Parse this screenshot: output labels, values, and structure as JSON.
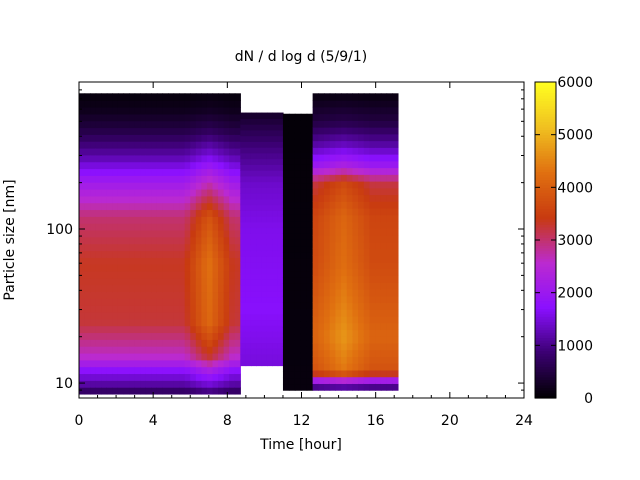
{
  "chart_data": {
    "type": "heatmap",
    "title": "dN / d log d (5/9/1)",
    "xlabel": "Time [hour]",
    "ylabel": "Particle size [nm]",
    "xlim": [
      0,
      24
    ],
    "ylim": [
      8,
      900
    ],
    "yscale": "log",
    "x_ticks": [
      0,
      4,
      8,
      12,
      16,
      20,
      24
    ],
    "y_ticks": [
      10,
      100
    ],
    "colorbar": {
      "min": 0,
      "max": 6000,
      "ticks": [
        0,
        1000,
        2000,
        3000,
        4000,
        5000,
        6000
      ],
      "palette": [
        "#000000",
        "#3a0070",
        "#8a10ff",
        "#bb2ad0",
        "#c83a10",
        "#e07010",
        "#f0c020",
        "#ffff20"
      ]
    },
    "segments": [
      {
        "x_start": 0,
        "x_end": 8.7,
        "d_min": 8.5,
        "d_max": 760,
        "profile": [
          [
            8.5,
            600
          ],
          [
            10,
            1200
          ],
          [
            12,
            1700
          ],
          [
            15,
            2600
          ],
          [
            25,
            3250
          ],
          [
            60,
            3350
          ],
          [
            120,
            3000
          ],
          [
            200,
            2100
          ],
          [
            300,
            1200
          ],
          [
            450,
            500
          ],
          [
            600,
            200
          ],
          [
            760,
            80
          ]
        ],
        "peak_hours": [
          6.5,
          7.5
        ],
        "peak_value": 4300
      },
      {
        "x_start": 8.7,
        "x_end": 11.0,
        "d_min": 13,
        "d_max": 570,
        "profile": [
          [
            13,
            1500
          ],
          [
            30,
            1700
          ],
          [
            100,
            1600
          ],
          [
            200,
            1400
          ],
          [
            350,
            900
          ],
          [
            570,
            300
          ]
        ]
      },
      {
        "x_start": 11.0,
        "x_end": 12.6,
        "d_min": 9,
        "d_max": 560,
        "profile": [
          [
            9,
            100
          ],
          [
            560,
            60
          ]
        ]
      },
      {
        "x_start": 12.6,
        "x_end": 17.2,
        "d_min": 9,
        "d_max": 760,
        "profile": [
          [
            9,
            500
          ],
          [
            10,
            1600
          ],
          [
            12,
            3800
          ],
          [
            20,
            4100
          ],
          [
            60,
            3700
          ],
          [
            120,
            3600
          ],
          [
            200,
            3200
          ],
          [
            260,
            2000
          ],
          [
            350,
            1200
          ],
          [
            500,
            500
          ],
          [
            760,
            100
          ]
        ],
        "peak_hours": [
          13.5,
          15.0
        ],
        "peak_value": 4700
      }
    ]
  }
}
